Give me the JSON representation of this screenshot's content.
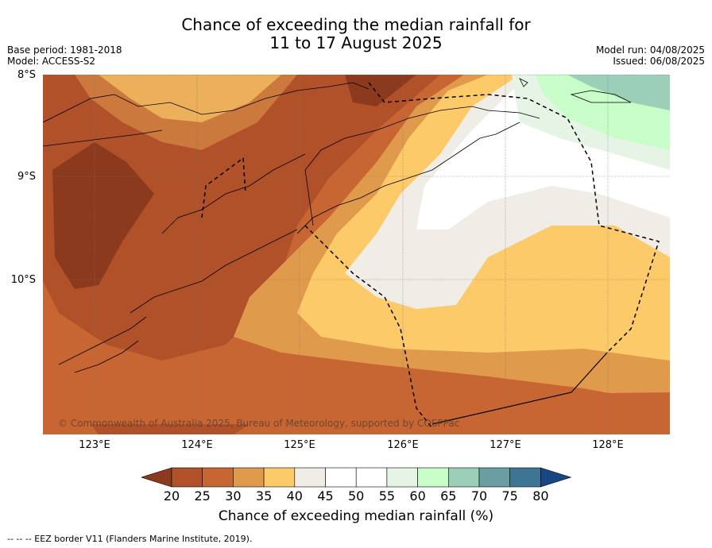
{
  "title": {
    "line1": "Chance of exceeding the median rainfall for",
    "line2": "11 to 17 August 2025"
  },
  "meta": {
    "base_period": "Base period: 1981-2018",
    "model": "Model: ACCESS-S2",
    "model_run": "Model run: 04/08/2025",
    "issued": "Issued: 06/08/2025"
  },
  "map": {
    "lat_labels": [
      "8°S",
      "9°S",
      "10°S"
    ],
    "lon_labels": [
      "123°E",
      "124°E",
      "125°E",
      "126°E",
      "127°E",
      "128°E"
    ],
    "copyright": "© Commonwealth of Australia 2025, Bureau of Meteorology, supported by COSPPac"
  },
  "colorbar": {
    "title": "Chance of exceeding median rainfall (%)",
    "ticks": [
      "20",
      "25",
      "30",
      "35",
      "40",
      "45",
      "50",
      "55",
      "60",
      "65",
      "70",
      "75",
      "80"
    ],
    "colors": [
      "#8c3a1e",
      "#b1512a",
      "#c86633",
      "#e09a4c",
      "#fdca6a",
      "#f0ece6",
      "#ffffff",
      "#ffffff",
      "#e6f4e6",
      "#c8fcc8",
      "#9ccfb7",
      "#6b9ea3",
      "#3f7594",
      "#174684"
    ]
  },
  "footer": "--  --  -- EEZ border V11 (Flanders Marine Institute, 2019)."
}
